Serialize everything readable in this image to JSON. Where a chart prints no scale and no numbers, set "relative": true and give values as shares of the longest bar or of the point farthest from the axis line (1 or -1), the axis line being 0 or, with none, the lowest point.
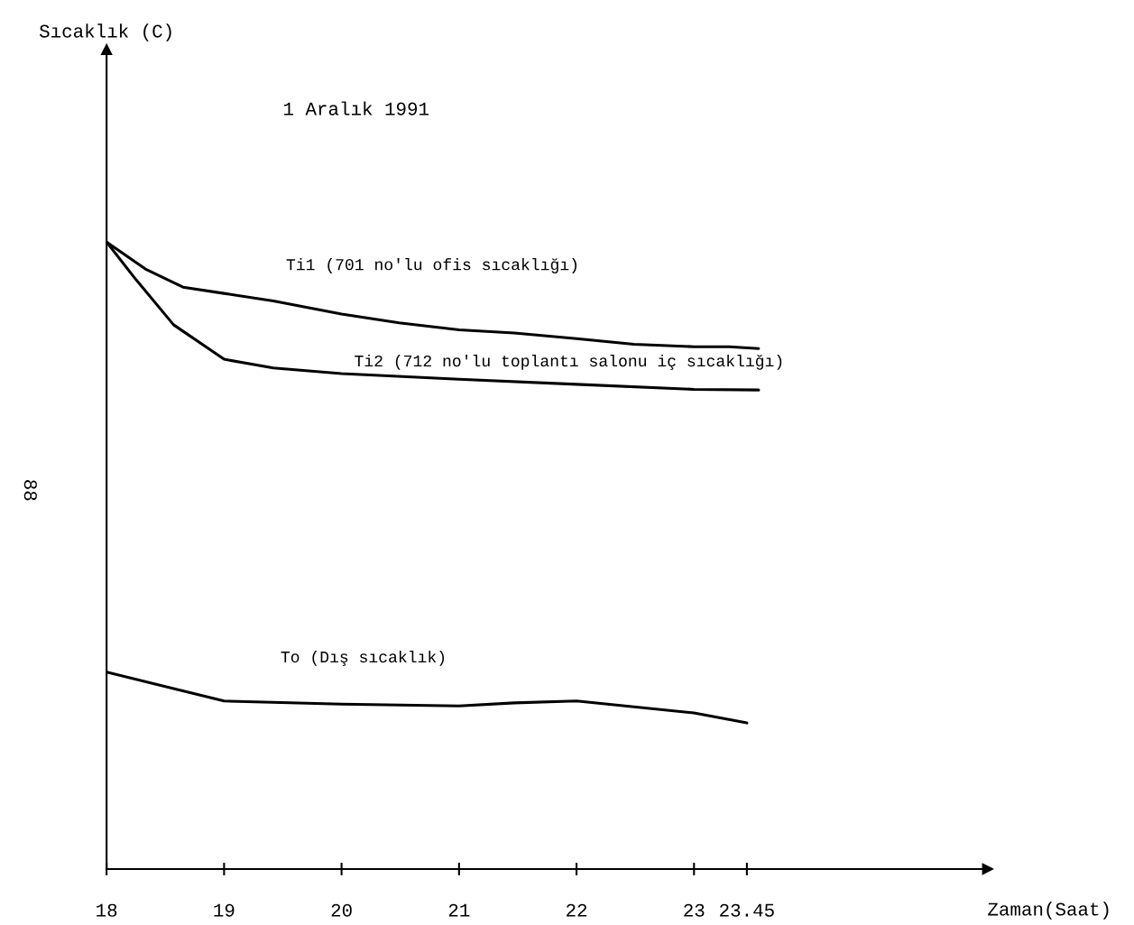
{
  "chart_data": {
    "type": "line",
    "relative": true,
    "xlabel": "Zaman(Saat)",
    "xlim": [
      18,
      25.5
    ],
    "xticks": [
      18,
      19,
      20,
      21,
      22,
      23,
      23.45
    ],
    "annotations": [
      "1 Aralık 1991",
      "88",
      "Sıcaklık (C)"
    ],
    "series": [
      {
        "name": "Ti1 (701 no'lu ofis sıcaklığı)",
        "color": "#000000",
        "x": [
          18,
          18.33,
          18.65,
          19,
          19.42,
          20,
          20.49,
          21,
          21.47,
          22,
          22.49,
          23,
          23.3,
          23.55
        ],
        "values": [
          1.0,
          0.957,
          0.928,
          0.918,
          0.906,
          0.885,
          0.871,
          0.86,
          0.855,
          0.846,
          0.837,
          0.833,
          0.833,
          0.83
        ]
      },
      {
        "name": "Ti2 (712 no'lu toplantı salonu iç sıcaklığı)",
        "color": "#000000",
        "x": [
          18,
          18.25,
          18.57,
          19,
          19.42,
          20,
          21,
          22,
          23,
          23.55
        ],
        "values": [
          1.0,
          0.94,
          0.868,
          0.813,
          0.799,
          0.79,
          0.781,
          0.773,
          0.765,
          0.764
        ]
      },
      {
        "name": "To (Dış sıcaklık)",
        "color": "#000000",
        "x": [
          18,
          19,
          20,
          21,
          21.47,
          22,
          23,
          23.45
        ],
        "values": [
          0.314,
          0.268,
          0.263,
          0.26,
          0.265,
          0.268,
          0.249,
          0.233
        ]
      }
    ]
  }
}
